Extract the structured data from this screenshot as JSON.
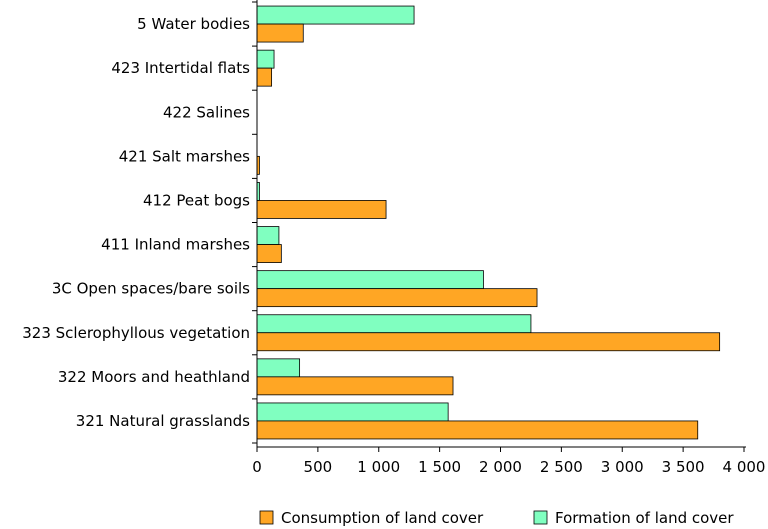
{
  "chart_data": {
    "type": "bar",
    "orientation": "horizontal",
    "categories": [
      "5 Water bodies",
      "423 Intertidal flats",
      "422 Salines",
      "421 Salt marshes",
      "412 Peat bogs",
      "411 Inland marshes",
      "3C Open spaces/bare soils",
      "323 Sclerophyllous vegetation",
      "322 Moors and heathland",
      "321 Natural grasslands"
    ],
    "series": [
      {
        "name": "Formation of land cover",
        "color": "#80ffc0",
        "values": [
          1290,
          140,
          0,
          0,
          20,
          180,
          1860,
          2250,
          350,
          1570
        ]
      },
      {
        "name": "Consumption of land cover",
        "color": "#ffa624",
        "values": [
          380,
          120,
          0,
          20,
          1060,
          200,
          2300,
          3800,
          1610,
          3620
        ]
      }
    ],
    "xlim": [
      0,
      4000
    ],
    "xticks": [
      0,
      500,
      1000,
      1500,
      2000,
      2500,
      3000,
      3500,
      4000
    ],
    "xtick_labels": [
      "0",
      "500",
      "1 000",
      "1 500",
      "2 000",
      "2 500",
      "3 000",
      "3 500",
      "4 000"
    ],
    "legend": [
      {
        "label": "Consumption of land cover",
        "color": "#ffa624"
      },
      {
        "label": "Formation of land cover",
        "color": "#80ffc0"
      }
    ],
    "legend_position": "bottom",
    "grid": false
  }
}
